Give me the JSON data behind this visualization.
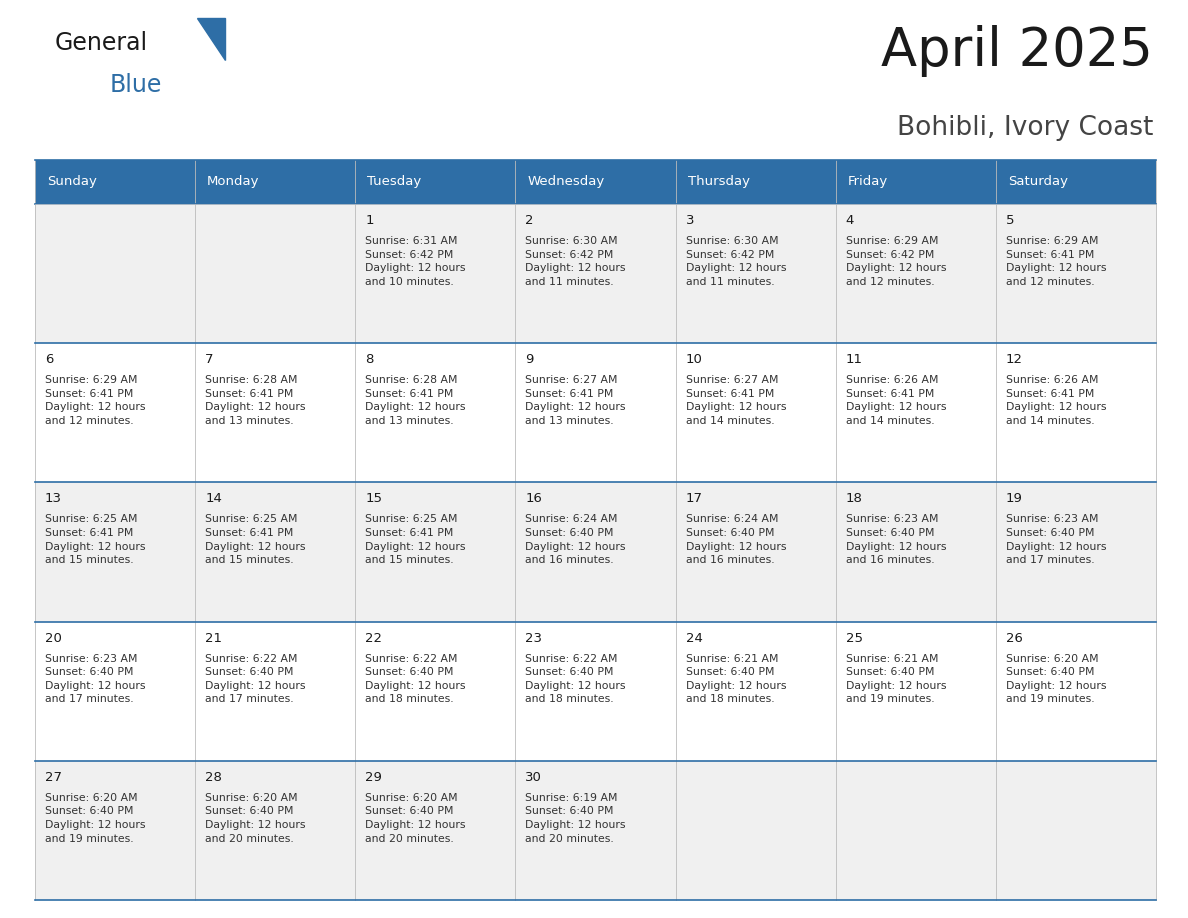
{
  "title": "April 2025",
  "subtitle": "Bohibli, Ivory Coast",
  "header_bg": "#2E6EA6",
  "header_text_color": "#FFFFFF",
  "row_bg_odd": "#F0F0F0",
  "row_bg_even": "#FFFFFF",
  "border_color": "#2E6EA6",
  "cell_border_color": "#AAAAAA",
  "day_headers": [
    "Sunday",
    "Monday",
    "Tuesday",
    "Wednesday",
    "Thursday",
    "Friday",
    "Saturday"
  ],
  "calendar_data": [
    [
      "",
      "",
      "1\nSunrise: 6:31 AM\nSunset: 6:42 PM\nDaylight: 12 hours\nand 10 minutes.",
      "2\nSunrise: 6:30 AM\nSunset: 6:42 PM\nDaylight: 12 hours\nand 11 minutes.",
      "3\nSunrise: 6:30 AM\nSunset: 6:42 PM\nDaylight: 12 hours\nand 11 minutes.",
      "4\nSunrise: 6:29 AM\nSunset: 6:42 PM\nDaylight: 12 hours\nand 12 minutes.",
      "5\nSunrise: 6:29 AM\nSunset: 6:41 PM\nDaylight: 12 hours\nand 12 minutes."
    ],
    [
      "6\nSunrise: 6:29 AM\nSunset: 6:41 PM\nDaylight: 12 hours\nand 12 minutes.",
      "7\nSunrise: 6:28 AM\nSunset: 6:41 PM\nDaylight: 12 hours\nand 13 minutes.",
      "8\nSunrise: 6:28 AM\nSunset: 6:41 PM\nDaylight: 12 hours\nand 13 minutes.",
      "9\nSunrise: 6:27 AM\nSunset: 6:41 PM\nDaylight: 12 hours\nand 13 minutes.",
      "10\nSunrise: 6:27 AM\nSunset: 6:41 PM\nDaylight: 12 hours\nand 14 minutes.",
      "11\nSunrise: 6:26 AM\nSunset: 6:41 PM\nDaylight: 12 hours\nand 14 minutes.",
      "12\nSunrise: 6:26 AM\nSunset: 6:41 PM\nDaylight: 12 hours\nand 14 minutes."
    ],
    [
      "13\nSunrise: 6:25 AM\nSunset: 6:41 PM\nDaylight: 12 hours\nand 15 minutes.",
      "14\nSunrise: 6:25 AM\nSunset: 6:41 PM\nDaylight: 12 hours\nand 15 minutes.",
      "15\nSunrise: 6:25 AM\nSunset: 6:41 PM\nDaylight: 12 hours\nand 15 minutes.",
      "16\nSunrise: 6:24 AM\nSunset: 6:40 PM\nDaylight: 12 hours\nand 16 minutes.",
      "17\nSunrise: 6:24 AM\nSunset: 6:40 PM\nDaylight: 12 hours\nand 16 minutes.",
      "18\nSunrise: 6:23 AM\nSunset: 6:40 PM\nDaylight: 12 hours\nand 16 minutes.",
      "19\nSunrise: 6:23 AM\nSunset: 6:40 PM\nDaylight: 12 hours\nand 17 minutes."
    ],
    [
      "20\nSunrise: 6:23 AM\nSunset: 6:40 PM\nDaylight: 12 hours\nand 17 minutes.",
      "21\nSunrise: 6:22 AM\nSunset: 6:40 PM\nDaylight: 12 hours\nand 17 minutes.",
      "22\nSunrise: 6:22 AM\nSunset: 6:40 PM\nDaylight: 12 hours\nand 18 minutes.",
      "23\nSunrise: 6:22 AM\nSunset: 6:40 PM\nDaylight: 12 hours\nand 18 minutes.",
      "24\nSunrise: 6:21 AM\nSunset: 6:40 PM\nDaylight: 12 hours\nand 18 minutes.",
      "25\nSunrise: 6:21 AM\nSunset: 6:40 PM\nDaylight: 12 hours\nand 19 minutes.",
      "26\nSunrise: 6:20 AM\nSunset: 6:40 PM\nDaylight: 12 hours\nand 19 minutes."
    ],
    [
      "27\nSunrise: 6:20 AM\nSunset: 6:40 PM\nDaylight: 12 hours\nand 19 minutes.",
      "28\nSunrise: 6:20 AM\nSunset: 6:40 PM\nDaylight: 12 hours\nand 20 minutes.",
      "29\nSunrise: 6:20 AM\nSunset: 6:40 PM\nDaylight: 12 hours\nand 20 minutes.",
      "30\nSunrise: 6:19 AM\nSunset: 6:40 PM\nDaylight: 12 hours\nand 20 minutes.",
      "",
      "",
      ""
    ]
  ],
  "fig_width": 11.88,
  "fig_height": 9.18,
  "dpi": 100
}
